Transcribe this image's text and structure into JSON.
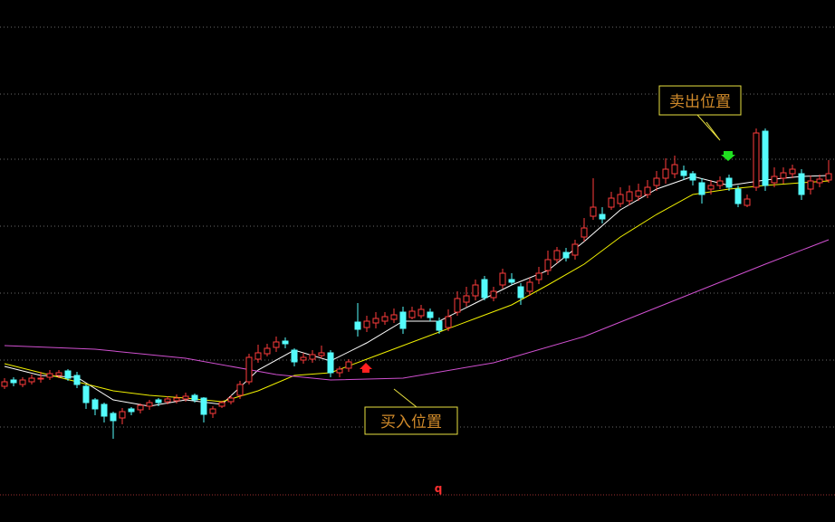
{
  "chart_data": {
    "type": "candlestick",
    "open": [
      150,
      157,
      152,
      155,
      158,
      160,
      162,
      167,
      162,
      150,
      135,
      130,
      120,
      115,
      125,
      124,
      128,
      135,
      133,
      134,
      136,
      140,
      137,
      120,
      128,
      133,
      140,
      155,
      180,
      186,
      193,
      200,
      190,
      179,
      180,
      184,
      187,
      165,
      170,
      221,
      215,
      220,
      222,
      224,
      232,
      226,
      228,
      232,
      222,
      215,
      232,
      243,
      250,
      268,
      248,
      262,
      268,
      260,
      255,
      268,
      278,
      290,
      298,
      295,
      315,
      338,
      340,
      348,
      352,
      355,
      360,
      362,
      372,
      380,
      385,
      388,
      385,
      375,
      368,
      372,
      380,
      368,
      350,
      370,
      432,
      375,
      380,
      385,
      385,
      368,
      375,
      378
    ],
    "high": [
      159,
      160,
      160,
      163,
      166,
      168,
      168,
      169,
      166,
      152,
      137,
      132,
      122,
      126,
      127,
      131,
      135,
      137,
      139,
      141,
      143,
      142,
      138,
      128,
      134,
      140,
      156,
      186,
      196,
      197,
      205,
      204,
      192,
      187,
      190,
      195,
      190,
      172,
      180,
      242,
      228,
      232,
      232,
      236,
      238,
      238,
      240,
      236,
      226,
      235,
      255,
      260,
      268,
      272,
      260,
      280,
      275,
      264,
      270,
      282,
      300,
      304,
      303,
      312,
      336,
      380,
      348,
      365,
      370,
      372,
      374,
      378,
      388,
      402,
      405,
      394,
      388,
      380,
      378,
      382,
      384,
      372,
      362,
      435,
      435,
      392,
      392,
      395,
      390,
      383,
      384,
      400
    ],
    "low": [
      147,
      150,
      149,
      152,
      154,
      157,
      159,
      156,
      148,
      125,
      118,
      110,
      92,
      108,
      118,
      120,
      124,
      128,
      130,
      131,
      133,
      132,
      110,
      115,
      126,
      130,
      136,
      152,
      176,
      183,
      188,
      192,
      172,
      175,
      176,
      181,
      160,
      160,
      166,
      205,
      210,
      214,
      218,
      220,
      208,
      224,
      225,
      222,
      208,
      211,
      228,
      238,
      245,
      245,
      244,
      258,
      262,
      240,
      250,
      263,
      273,
      286,
      288,
      290,
      310,
      334,
      330,
      345,
      348,
      350,
      355,
      358,
      366,
      374,
      380,
      378,
      372,
      352,
      362,
      368,
      366,
      348,
      348,
      366,
      366,
      370,
      374,
      380,
      356,
      362,
      370,
      375
    ],
    "close": [
      155,
      154,
      157,
      159,
      159,
      164,
      165,
      159,
      152,
      132,
      125,
      117,
      112,
      122,
      122,
      129,
      132,
      132,
      136,
      137,
      139,
      135,
      119,
      125,
      132,
      137,
      152,
      182,
      187,
      192,
      199,
      197,
      177,
      182,
      185,
      187,
      165,
      169,
      177,
      213,
      222,
      225,
      227,
      229,
      214,
      233,
      235,
      226,
      212,
      227,
      247,
      250,
      262,
      248,
      255,
      275,
      265,
      248,
      265,
      275,
      290,
      300,
      292,
      307,
      325,
      348,
      335,
      358,
      362,
      365,
      366,
      370,
      380,
      390,
      395,
      383,
      378,
      362,
      372,
      377,
      370,
      352,
      357,
      430,
      372,
      382,
      386,
      390,
      362,
      377,
      379,
      385
    ],
    "up_color": "#ff3c3c",
    "down_color": "#54fcfc",
    "lines": [
      {
        "color": "#ffffff",
        "x": [
          0,
          4,
          8,
          12,
          16,
          20,
          24,
          28,
          32,
          36,
          40,
          44,
          48,
          52,
          56,
          60,
          64,
          68,
          72,
          76,
          80,
          84,
          88,
          91
        ],
        "values": [
          172,
          162,
          160,
          135,
          128,
          135,
          130,
          168,
          190,
          178,
          198,
          222,
          222,
          242,
          262,
          278,
          310,
          345,
          368,
          382,
          372,
          378,
          382,
          383
        ]
      },
      {
        "color": "#f0f000",
        "x": [
          0,
          4,
          8,
          12,
          16,
          20,
          24,
          28,
          32,
          36,
          40,
          44,
          48,
          52,
          56,
          60,
          64,
          68,
          72,
          76,
          80,
          84,
          88,
          91
        ],
        "values": [
          175,
          165,
          155,
          145,
          140,
          137,
          133,
          145,
          162,
          165,
          180,
          195,
          210,
          225,
          240,
          262,
          285,
          315,
          340,
          362,
          368,
          372,
          375,
          377
        ]
      },
      {
        "color": "#d050d0",
        "x": [
          0,
          10,
          20,
          30,
          36,
          44,
          54,
          64,
          74,
          84,
          91
        ],
        "values": [
          195,
          191,
          181,
          163,
          157,
          159,
          176,
          205,
          245,
          285,
          312
        ]
      }
    ],
    "ylim": [
      0,
      577
    ],
    "yticks": [
      547,
      473,
      401,
      327,
      253,
      179,
      105
    ],
    "baseline": 30,
    "grid": true,
    "annotations": [
      {
        "text": "卖出位置"
      },
      {
        "text": "买入位置"
      }
    ],
    "marker_label": "q"
  }
}
